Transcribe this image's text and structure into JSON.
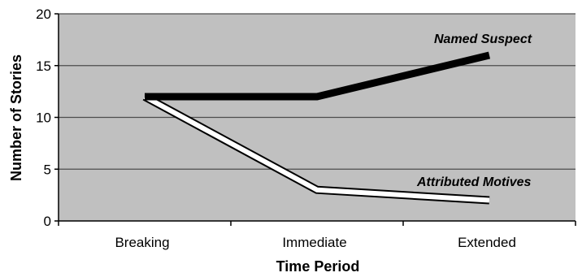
{
  "chart_data": {
    "type": "line",
    "title": "",
    "xlabel": "Time Period",
    "ylabel": "Number of Stories",
    "categories": [
      "Breaking",
      "Immediate",
      "Extended"
    ],
    "ylim": [
      0,
      20
    ],
    "yticks": [
      0,
      5,
      10,
      15,
      20
    ],
    "grid": true,
    "legend": "inline labels",
    "series": [
      {
        "name": "Named Suspect",
        "values": [
          12,
          12,
          16
        ],
        "style": "thick black line"
      },
      {
        "name": "Attributed Motives",
        "values": [
          12,
          3,
          2
        ],
        "style": "white line with black outline"
      }
    ],
    "colors": {
      "plot_background": "#c0c0c0",
      "gridline": "#4d4d4d",
      "axis": "#000000",
      "named_suspect": "#000000",
      "attributed_motives_fill": "#ffffff",
      "attributed_motives_outline": "#000000"
    }
  }
}
